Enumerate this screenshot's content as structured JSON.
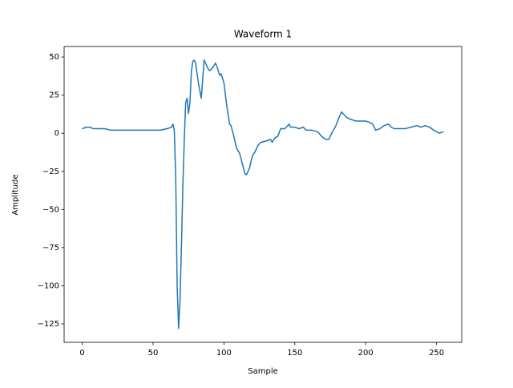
{
  "chart_data": {
    "type": "line",
    "title": "Waveform 1",
    "x_label": "Sample",
    "y_label": "Amplitude",
    "color": "#1f77b4",
    "x": [
      0,
      3,
      5,
      8,
      12,
      16,
      20,
      25,
      30,
      35,
      40,
      45,
      50,
      55,
      60,
      63,
      64,
      65,
      66,
      67,
      68,
      69,
      70,
      71,
      72,
      73,
      74,
      75,
      76,
      77,
      78,
      79,
      80,
      82,
      84,
      85,
      86,
      87,
      89,
      90,
      92,
      94,
      95,
      97,
      98,
      100,
      102,
      104,
      105,
      107,
      109,
      111,
      113,
      115,
      116,
      118,
      120,
      122,
      124,
      126,
      130,
      133,
      134,
      136,
      138,
      140,
      143,
      146,
      147,
      150,
      153,
      156,
      158,
      162,
      166,
      170,
      172,
      174,
      176,
      179,
      181,
      183,
      185,
      187,
      190,
      193,
      196,
      200,
      203,
      205,
      207,
      210,
      213,
      216,
      218,
      220,
      224,
      228,
      232,
      236,
      239,
      242,
      245,
      248,
      250,
      252,
      255
    ],
    "values": [
      3,
      4,
      4,
      3,
      3,
      3,
      2,
      2,
      2,
      2,
      2,
      2,
      2,
      2,
      3,
      4,
      6,
      2,
      -30,
      -100,
      -128,
      -110,
      -75,
      -35,
      -5,
      20,
      23,
      13,
      20,
      40,
      47,
      48,
      46,
      33,
      23,
      35,
      48,
      46,
      42,
      41,
      43,
      46,
      44,
      38,
      39,
      33,
      18,
      6,
      5,
      -2,
      -10,
      -13,
      -20,
      -27,
      -27,
      -23,
      -15,
      -12,
      -8,
      -6,
      -5,
      -4,
      -6,
      -3,
      -2,
      3,
      3,
      6,
      4,
      4,
      3,
      4,
      2,
      2,
      1,
      -3,
      -4,
      -4,
      0,
      5,
      10,
      14,
      12,
      10,
      9,
      8,
      8,
      8,
      7,
      6,
      2,
      3,
      5,
      6,
      4,
      3,
      3,
      3,
      4,
      5,
      4,
      5,
      4,
      2,
      1,
      0,
      1
    ],
    "xlim": [
      -12.75,
      267.75
    ],
    "ylim": [
      -137.1,
      56.9
    ],
    "xticks": [
      0,
      50,
      100,
      150,
      200,
      250
    ],
    "yticks": [
      {
        "value": -125,
        "label": "−125"
      },
      {
        "value": -100,
        "label": "−100"
      },
      {
        "value": -75,
        "label": "−75"
      },
      {
        "value": -50,
        "label": "−50"
      },
      {
        "value": -25,
        "label": "−25"
      },
      0,
      25,
      50
    ]
  }
}
